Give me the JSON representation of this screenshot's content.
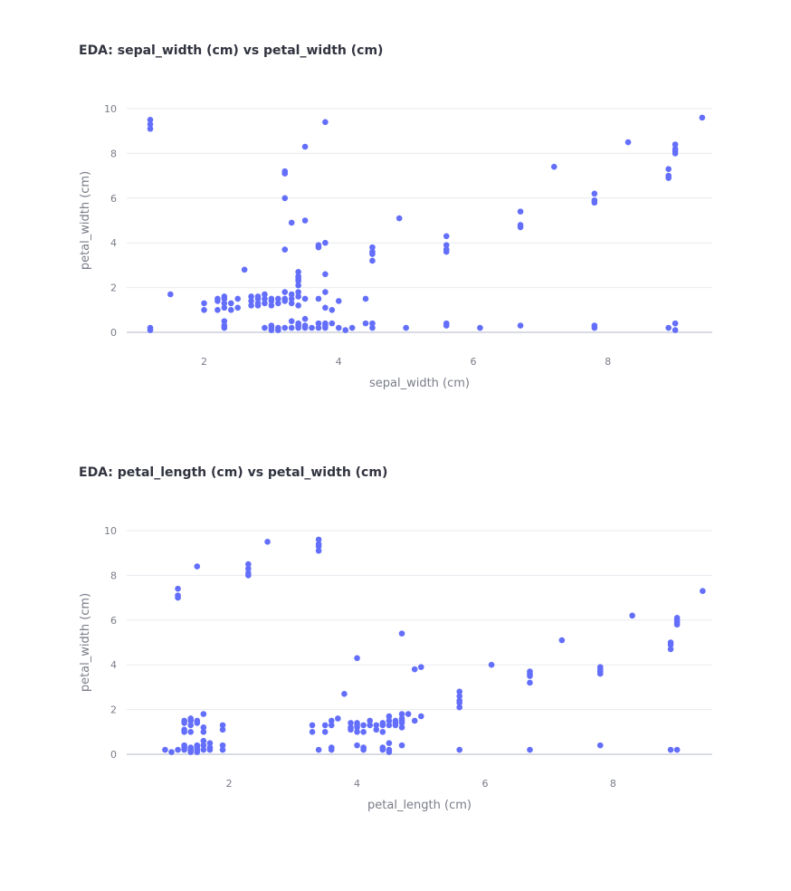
{
  "colors": {
    "marker": "#636efa",
    "grid": "#e8eaef",
    "zeroline": "#d9dbe4"
  },
  "chart_data": [
    {
      "type": "scatter",
      "title": "EDA: sepal_width (cm) vs petal_width (cm)",
      "xlabel": "sepal_width (cm)",
      "ylabel": "petal_width (cm)",
      "xlim": [
        0.85,
        9.55
      ],
      "ylim": [
        0,
        10
      ],
      "xticks": [
        2,
        4,
        6,
        8
      ],
      "yticks": [
        0,
        2,
        4,
        6,
        8,
        10
      ],
      "grid": true,
      "points": [
        [
          1.2,
          9.5
        ],
        [
          1.2,
          9.3
        ],
        [
          1.2,
          9.1
        ],
        [
          1.2,
          0.2
        ],
        [
          1.2,
          0.1
        ],
        [
          1.5,
          1.7
        ],
        [
          2.0,
          1.3
        ],
        [
          2.0,
          1.0
        ],
        [
          2.2,
          1.4
        ],
        [
          2.2,
          1.5
        ],
        [
          2.2,
          1.0
        ],
        [
          2.3,
          1.3
        ],
        [
          2.3,
          1.6
        ],
        [
          2.3,
          1.5
        ],
        [
          2.3,
          0.3
        ],
        [
          2.3,
          0.5
        ],
        [
          2.3,
          1.1
        ],
        [
          2.3,
          0.2
        ],
        [
          2.4,
          1.0
        ],
        [
          2.4,
          1.3
        ],
        [
          2.5,
          1.5
        ],
        [
          2.5,
          1.1
        ],
        [
          2.6,
          2.8
        ],
        [
          2.7,
          1.6
        ],
        [
          2.7,
          1.4
        ],
        [
          2.7,
          1.2
        ],
        [
          2.8,
          1.5
        ],
        [
          2.8,
          1.3
        ],
        [
          2.8,
          1.2
        ],
        [
          2.8,
          1.6
        ],
        [
          2.9,
          1.5
        ],
        [
          2.9,
          1.7
        ],
        [
          2.9,
          1.3
        ],
        [
          2.9,
          0.2
        ],
        [
          3.0,
          1.5
        ],
        [
          3.0,
          1.4
        ],
        [
          3.0,
          1.2
        ],
        [
          3.0,
          0.3
        ],
        [
          3.0,
          0.2
        ],
        [
          3.0,
          0.1
        ],
        [
          3.1,
          1.5
        ],
        [
          3.1,
          1.3
        ],
        [
          3.1,
          0.2
        ],
        [
          3.1,
          0.1
        ],
        [
          3.2,
          1.8
        ],
        [
          3.2,
          1.4
        ],
        [
          3.2,
          1.5
        ],
        [
          3.2,
          0.2
        ],
        [
          3.2,
          7.1
        ],
        [
          3.2,
          7.2
        ],
        [
          3.2,
          6.0
        ],
        [
          3.2,
          3.7
        ],
        [
          3.3,
          1.7
        ],
        [
          3.3,
          1.5
        ],
        [
          3.3,
          1.3
        ],
        [
          3.3,
          0.5
        ],
        [
          3.3,
          0.2
        ],
        [
          3.3,
          4.9
        ],
        [
          3.4,
          1.8
        ],
        [
          3.4,
          1.6
        ],
        [
          3.4,
          1.2
        ],
        [
          3.4,
          0.4
        ],
        [
          3.4,
          0.3
        ],
        [
          3.4,
          0.2
        ],
        [
          3.4,
          2.7
        ],
        [
          3.4,
          2.5
        ],
        [
          3.4,
          2.4
        ],
        [
          3.4,
          2.3
        ],
        [
          3.4,
          2.1
        ],
        [
          3.5,
          1.5
        ],
        [
          3.5,
          0.6
        ],
        [
          3.5,
          0.3
        ],
        [
          3.5,
          0.2
        ],
        [
          3.5,
          5.0
        ],
        [
          3.5,
          8.3
        ],
        [
          3.6,
          0.2
        ],
        [
          3.7,
          1.5
        ],
        [
          3.7,
          0.4
        ],
        [
          3.7,
          0.2
        ],
        [
          3.7,
          3.8
        ],
        [
          3.7,
          3.9
        ],
        [
          3.8,
          4.0
        ],
        [
          3.8,
          2.6
        ],
        [
          3.8,
          1.8
        ],
        [
          3.8,
          1.1
        ],
        [
          3.8,
          0.4
        ],
        [
          3.8,
          0.3
        ],
        [
          3.8,
          0.2
        ],
        [
          3.8,
          9.4
        ],
        [
          3.9,
          1.0
        ],
        [
          3.9,
          0.4
        ],
        [
          4.0,
          1.4
        ],
        [
          4.0,
          0.2
        ],
        [
          4.1,
          0.1
        ],
        [
          4.2,
          0.2
        ],
        [
          4.4,
          1.5
        ],
        [
          4.4,
          0.4
        ],
        [
          4.5,
          3.8
        ],
        [
          4.5,
          3.6
        ],
        [
          4.5,
          3.5
        ],
        [
          4.5,
          3.2
        ],
        [
          4.5,
          0.4
        ],
        [
          4.5,
          0.2
        ],
        [
          4.9,
          5.1
        ],
        [
          5.0,
          0.2
        ],
        [
          5.6,
          4.3
        ],
        [
          5.6,
          3.9
        ],
        [
          5.6,
          3.7
        ],
        [
          5.6,
          3.6
        ],
        [
          5.6,
          0.4
        ],
        [
          5.6,
          0.3
        ],
        [
          6.1,
          0.2
        ],
        [
          6.7,
          5.4
        ],
        [
          6.7,
          4.8
        ],
        [
          6.7,
          4.7
        ],
        [
          6.7,
          0.3
        ],
        [
          7.2,
          7.4
        ],
        [
          7.8,
          6.2
        ],
        [
          7.8,
          5.9
        ],
        [
          7.8,
          5.8
        ],
        [
          7.8,
          0.3
        ],
        [
          7.8,
          0.2
        ],
        [
          8.3,
          8.5
        ],
        [
          8.9,
          7.3
        ],
        [
          8.9,
          7.0
        ],
        [
          8.9,
          6.9
        ],
        [
          8.9,
          0.2
        ],
        [
          9.0,
          8.4
        ],
        [
          9.0,
          8.2
        ],
        [
          9.0,
          8.1
        ],
        [
          9.0,
          8.0
        ],
        [
          9.0,
          0.4
        ],
        [
          9.0,
          0.1
        ],
        [
          9.4,
          9.6
        ]
      ]
    },
    {
      "type": "scatter",
      "title": "EDA: petal_length (cm) vs petal_width (cm)",
      "xlabel": "petal_length (cm)",
      "ylabel": "petal_width (cm)",
      "xlim": [
        0.4,
        9.55
      ],
      "ylim": [
        0,
        10
      ],
      "xticks": [
        2,
        4,
        6,
        8
      ],
      "yticks": [
        0,
        2,
        4,
        6,
        8,
        10
      ],
      "grid": true,
      "points": [
        [
          1.0,
          0.2
        ],
        [
          1.1,
          0.1
        ],
        [
          1.2,
          0.2
        ],
        [
          1.2,
          7.4
        ],
        [
          1.2,
          7.1
        ],
        [
          1.2,
          7.0
        ],
        [
          1.3,
          0.4
        ],
        [
          1.3,
          0.3
        ],
        [
          1.3,
          0.2
        ],
        [
          1.3,
          1.5
        ],
        [
          1.3,
          1.1
        ],
        [
          1.3,
          1.0
        ],
        [
          1.3,
          1.4
        ],
        [
          1.4,
          0.2
        ],
        [
          1.4,
          0.3
        ],
        [
          1.4,
          0.1
        ],
        [
          1.4,
          1.6
        ],
        [
          1.4,
          1.5
        ],
        [
          1.4,
          1.3
        ],
        [
          1.4,
          1.0
        ],
        [
          1.5,
          0.2
        ],
        [
          1.5,
          0.4
        ],
        [
          1.5,
          0.1
        ],
        [
          1.5,
          0.3
        ],
        [
          1.5,
          1.5
        ],
        [
          1.5,
          1.4
        ],
        [
          1.5,
          8.4
        ],
        [
          1.6,
          0.2
        ],
        [
          1.6,
          0.6
        ],
        [
          1.6,
          0.4
        ],
        [
          1.6,
          1.2
        ],
        [
          1.6,
          1.0
        ],
        [
          1.6,
          1.8
        ],
        [
          1.7,
          0.5
        ],
        [
          1.7,
          0.3
        ],
        [
          1.7,
          0.2
        ],
        [
          1.9,
          0.4
        ],
        [
          1.9,
          0.2
        ],
        [
          1.9,
          1.3
        ],
        [
          1.9,
          1.1
        ],
        [
          2.3,
          8.5
        ],
        [
          2.3,
          8.3
        ],
        [
          2.3,
          8.1
        ],
        [
          2.3,
          8.0
        ],
        [
          2.6,
          9.5
        ],
        [
          3.3,
          1.0
        ],
        [
          3.3,
          1.3
        ],
        [
          3.4,
          0.2
        ],
        [
          3.4,
          9.6
        ],
        [
          3.4,
          9.4
        ],
        [
          3.4,
          9.3
        ],
        [
          3.4,
          9.1
        ],
        [
          3.5,
          1.0
        ],
        [
          3.5,
          1.3
        ],
        [
          3.6,
          1.3
        ],
        [
          3.6,
          0.3
        ],
        [
          3.6,
          0.2
        ],
        [
          3.6,
          1.5
        ],
        [
          3.7,
          1.6
        ],
        [
          3.8,
          2.7
        ],
        [
          3.9,
          1.4
        ],
        [
          3.9,
          1.2
        ],
        [
          3.9,
          1.1
        ],
        [
          4.0,
          1.3
        ],
        [
          4.0,
          1.0
        ],
        [
          4.0,
          1.2
        ],
        [
          4.0,
          1.4
        ],
        [
          4.0,
          4.3
        ],
        [
          4.0,
          0.4
        ],
        [
          4.1,
          1.3
        ],
        [
          4.1,
          1.0
        ],
        [
          4.1,
          0.3
        ],
        [
          4.1,
          0.2
        ],
        [
          4.2,
          1.5
        ],
        [
          4.2,
          1.3
        ],
        [
          4.3,
          1.3
        ],
        [
          4.3,
          1.1
        ],
        [
          4.4,
          1.4
        ],
        [
          4.4,
          1.0
        ],
        [
          4.4,
          1.3
        ],
        [
          4.4,
          0.3
        ],
        [
          4.4,
          0.2
        ],
        [
          4.5,
          1.5
        ],
        [
          4.5,
          1.3
        ],
        [
          4.5,
          1.7
        ],
        [
          4.5,
          0.5
        ],
        [
          4.5,
          0.2
        ],
        [
          4.5,
          0.1
        ],
        [
          4.6,
          1.5
        ],
        [
          4.6,
          1.4
        ],
        [
          4.6,
          1.3
        ],
        [
          4.7,
          1.8
        ],
        [
          4.7,
          1.6
        ],
        [
          4.7,
          1.5
        ],
        [
          4.7,
          1.4
        ],
        [
          4.7,
          1.2
        ],
        [
          4.7,
          5.4
        ],
        [
          4.7,
          0.4
        ],
        [
          4.8,
          1.8
        ],
        [
          4.9,
          1.5
        ],
        [
          4.9,
          3.8
        ],
        [
          5.0,
          3.9
        ],
        [
          5.0,
          1.7
        ],
        [
          5.6,
          2.8
        ],
        [
          5.6,
          2.6
        ],
        [
          5.6,
          2.4
        ],
        [
          5.6,
          2.3
        ],
        [
          5.6,
          2.1
        ],
        [
          5.6,
          0.2
        ],
        [
          6.1,
          4.0
        ],
        [
          6.7,
          3.7
        ],
        [
          6.7,
          3.6
        ],
        [
          6.7,
          3.5
        ],
        [
          6.7,
          3.2
        ],
        [
          6.7,
          0.2
        ],
        [
          7.2,
          5.1
        ],
        [
          7.8,
          3.9
        ],
        [
          7.8,
          3.8
        ],
        [
          7.8,
          3.7
        ],
        [
          7.8,
          3.6
        ],
        [
          7.8,
          0.4
        ],
        [
          8.3,
          6.2
        ],
        [
          8.9,
          5.0
        ],
        [
          8.9,
          4.9
        ],
        [
          8.9,
          4.7
        ],
        [
          8.9,
          0.2
        ],
        [
          9.0,
          0.2
        ],
        [
          9.0,
          6.1
        ],
        [
          9.0,
          6.0
        ],
        [
          9.0,
          5.9
        ],
        [
          9.0,
          5.8
        ],
        [
          9.4,
          7.3
        ]
      ]
    }
  ]
}
